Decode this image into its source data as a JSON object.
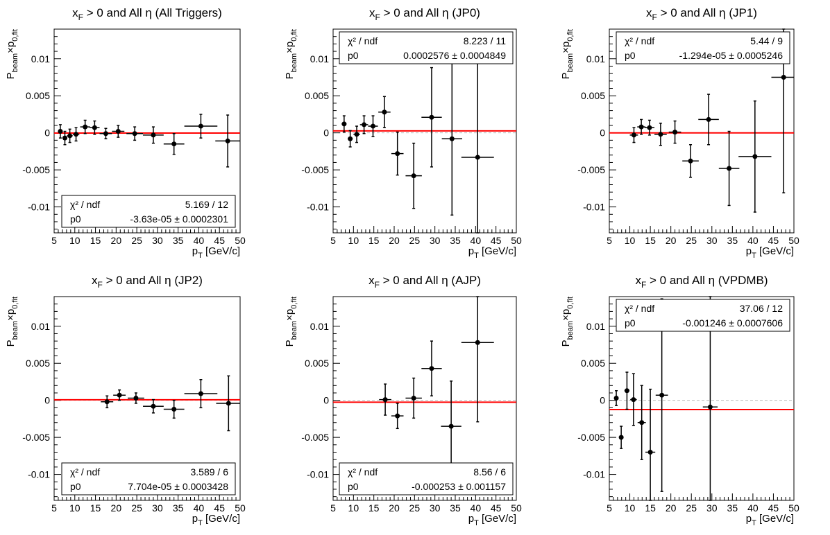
{
  "colors": {
    "fit_line": "#ff0000",
    "zero_line": "#bbbbbb",
    "points": "#000000"
  },
  "chart_data": [
    {
      "type": "scatter",
      "title": {
        "prefix": "x",
        "sub": "F",
        "rest": " > 0 and All η (All Triggers)"
      },
      "xlabel": "p_T [GeV/c]",
      "ylabel": "P_beam×p_0,fit",
      "xlim": [
        5,
        50
      ],
      "ylim": [
        -0.0135,
        0.014
      ],
      "xticks": [
        "5",
        "10",
        "15",
        "20",
        "25",
        "30",
        "35",
        "40",
        "45",
        "50"
      ],
      "yticks": [
        "0.01",
        "0.005",
        "0",
        "-0.005",
        "-0.01"
      ],
      "fit": {
        "p0": -3.63e-05,
        "chi2_ndf": "5.169 / 12",
        "p0_text": "-3.63e-05 ± 0.0002301"
      },
      "stats_box": {
        "label_chi": "χ² / ndf",
        "label_p0": "p0",
        "position": "bottom-center"
      },
      "points": [
        {
          "x": 6.5,
          "y": 0.0002,
          "xerr": 0.6,
          "yerr": 0.0009
        },
        {
          "x": 7.6,
          "y": -0.0007,
          "xerr": 0.6,
          "yerr": 0.0009
        },
        {
          "x": 8.8,
          "y": -0.0004,
          "xerr": 0.7,
          "yerr": 0.0009
        },
        {
          "x": 10.3,
          "y": -0.0002,
          "xerr": 0.8,
          "yerr": 0.0009
        },
        {
          "x": 12.5,
          "y": 0.0008,
          "xerr": 1.2,
          "yerr": 0.0009
        },
        {
          "x": 14.8,
          "y": 0.0007,
          "xerr": 1.2,
          "yerr": 0.0009
        },
        {
          "x": 17.5,
          "y": -0.0001,
          "xerr": 1.5,
          "yerr": 0.0007
        },
        {
          "x": 20.5,
          "y": 0.0002,
          "xerr": 1.5,
          "yerr": 0.0008
        },
        {
          "x": 24.5,
          "y": -0.0001,
          "xerr": 2.0,
          "yerr": 0.0009
        },
        {
          "x": 29.0,
          "y": -0.0003,
          "xerr": 2.5,
          "yerr": 0.0011
        },
        {
          "x": 34.0,
          "y": -0.0015,
          "xerr": 2.5,
          "yerr": 0.0014
        },
        {
          "x": 40.5,
          "y": 0.0009,
          "xerr": 4.0,
          "yerr": 0.0016
        },
        {
          "x": 47.0,
          "y": -0.0011,
          "xerr": 3.0,
          "yerr": 0.0035
        }
      ]
    },
    {
      "type": "scatter",
      "title": {
        "prefix": "x",
        "sub": "F",
        "rest": " > 0 and All η (JP0)"
      },
      "xlabel": "p_T [GeV/c]",
      "ylabel": "P_beam×p_0,fit",
      "xlim": [
        5,
        50
      ],
      "ylim": [
        -0.0135,
        0.014
      ],
      "xticks": [
        "5",
        "10",
        "15",
        "20",
        "25",
        "30",
        "35",
        "40",
        "45",
        "50"
      ],
      "yticks": [
        "0.01",
        "0.005",
        "0",
        "-0.005",
        "-0.01"
      ],
      "fit": {
        "p0": 0.0002576,
        "chi2_ndf": "8.223 / 11",
        "p0_text": "0.0002576 ± 0.0004849"
      },
      "stats_box": {
        "label_chi": "χ² / ndf",
        "label_p0": "p0",
        "position": "top-center"
      },
      "points": [
        {
          "x": 7.7,
          "y": 0.0012,
          "xerr": 0.6,
          "yerr": 0.0011
        },
        {
          "x": 9.2,
          "y": -0.0008,
          "xerr": 0.6,
          "yerr": 0.0011
        },
        {
          "x": 10.8,
          "y": -0.0002,
          "xerr": 0.8,
          "yerr": 0.0011
        },
        {
          "x": 12.6,
          "y": 0.0011,
          "xerr": 1.0,
          "yerr": 0.0012
        },
        {
          "x": 14.8,
          "y": 0.0009,
          "xerr": 1.2,
          "yerr": 0.0014
        },
        {
          "x": 17.6,
          "y": 0.0028,
          "xerr": 1.5,
          "yerr": 0.0021
        },
        {
          "x": 20.8,
          "y": -0.0028,
          "xerr": 1.5,
          "yerr": 0.0029
        },
        {
          "x": 24.8,
          "y": -0.0058,
          "xerr": 2.0,
          "yerr": 0.0044
        },
        {
          "x": 29.2,
          "y": 0.0021,
          "xerr": 2.5,
          "yerr": 0.0067
        },
        {
          "x": 34.2,
          "y": -0.0008,
          "xerr": 2.5,
          "yerr": 0.0103
        },
        {
          "x": 40.5,
          "y": -0.0033,
          "xerr": 4.0,
          "yerr": 0.0135
        }
      ]
    },
    {
      "type": "scatter",
      "title": {
        "prefix": "x",
        "sub": "F",
        "rest": " > 0 and All η (JP1)"
      },
      "xlabel": "p_T [GeV/c]",
      "ylabel": "P_beam×p_0,fit",
      "xlim": [
        5,
        50
      ],
      "ylim": [
        -0.0135,
        0.014
      ],
      "xticks": [
        "5",
        "10",
        "15",
        "20",
        "25",
        "30",
        "35",
        "40",
        "45",
        "50"
      ],
      "yticks": [
        "0.01",
        "0.005",
        "0",
        "-0.005",
        "-0.01"
      ],
      "fit": {
        "p0": -1.294e-05,
        "chi2_ndf": "5.44 / 9",
        "p0_text": "-1.294e-05 ± 0.0005246"
      },
      "stats_box": {
        "label_chi": "χ² / ndf",
        "label_p0": "p0",
        "position": "top-center"
      },
      "points": [
        {
          "x": 11.0,
          "y": -0.0003,
          "xerr": 1.0,
          "yerr": 0.001
        },
        {
          "x": 12.8,
          "y": 0.0008,
          "xerr": 1.0,
          "yerr": 0.001
        },
        {
          "x": 14.8,
          "y": 0.0007,
          "xerr": 1.2,
          "yerr": 0.001
        },
        {
          "x": 17.5,
          "y": -0.0002,
          "xerr": 1.5,
          "yerr": 0.0015
        },
        {
          "x": 21.0,
          "y": 0.0001,
          "xerr": 1.5,
          "yerr": 0.0015
        },
        {
          "x": 24.8,
          "y": -0.0038,
          "xerr": 2.0,
          "yerr": 0.0022
        },
        {
          "x": 29.2,
          "y": 0.0018,
          "xerr": 2.5,
          "yerr": 0.0034
        },
        {
          "x": 34.2,
          "y": -0.0048,
          "xerr": 2.5,
          "yerr": 0.005
        },
        {
          "x": 40.5,
          "y": -0.0032,
          "xerr": 4.0,
          "yerr": 0.0075
        },
        {
          "x": 47.5,
          "y": 0.0075,
          "xerr": 3.0,
          "yerr": 0.0156
        }
      ]
    },
    {
      "type": "scatter",
      "title": {
        "prefix": "x",
        "sub": "F",
        "rest": " > 0 and All η (JP2)"
      },
      "xlabel": "p_T [GeV/c]",
      "ylabel": "P_beam×p_0,fit",
      "xlim": [
        5,
        50
      ],
      "ylim": [
        -0.0135,
        0.014
      ],
      "xticks": [
        "5",
        "10",
        "15",
        "20",
        "25",
        "30",
        "35",
        "40",
        "45",
        "50"
      ],
      "yticks": [
        "0.01",
        "0.005",
        "0",
        "-0.005",
        "-0.01"
      ],
      "fit": {
        "p0": 7.704e-05,
        "chi2_ndf": "3.589 / 6",
        "p0_text": "7.704e-05 ± 0.0003428"
      },
      "stats_box": {
        "label_chi": "χ² / ndf",
        "label_p0": "p0",
        "position": "bottom-center"
      },
      "points": [
        {
          "x": 17.8,
          "y": -0.0002,
          "xerr": 1.5,
          "yerr": 0.0008
        },
        {
          "x": 20.8,
          "y": 0.0007,
          "xerr": 1.5,
          "yerr": 0.0007
        },
        {
          "x": 24.8,
          "y": 0.0003,
          "xerr": 2.0,
          "yerr": 0.0007
        },
        {
          "x": 29.0,
          "y": -0.0008,
          "xerr": 2.5,
          "yerr": 0.0009
        },
        {
          "x": 34.0,
          "y": -0.0012,
          "xerr": 2.5,
          "yerr": 0.0012
        },
        {
          "x": 40.5,
          "y": 0.0009,
          "xerr": 4.0,
          "yerr": 0.0019
        },
        {
          "x": 47.2,
          "y": -0.0004,
          "xerr": 3.0,
          "yerr": 0.0037
        }
      ]
    },
    {
      "type": "scatter",
      "title": {
        "prefix": "x",
        "sub": "F",
        "rest": " > 0 and All η (AJP)"
      },
      "xlabel": "p_T [GeV/c]",
      "ylabel": "P_beam×p_0,fit",
      "xlim": [
        5,
        50
      ],
      "ylim": [
        -0.0135,
        0.014
      ],
      "xticks": [
        "5",
        "10",
        "15",
        "20",
        "25",
        "30",
        "35",
        "40",
        "45",
        "50"
      ],
      "yticks": [
        "0.01",
        "0.005",
        "0",
        "-0.005",
        "-0.01"
      ],
      "fit": {
        "p0": -0.000253,
        "chi2_ndf": "8.56 / 6",
        "p0_text": "-0.000253 ± 0.001157"
      },
      "stats_box": {
        "label_chi": "χ² / ndf",
        "label_p0": "p0",
        "position": "bottom-center"
      },
      "points": [
        {
          "x": 17.8,
          "y": 0.0001,
          "xerr": 1.5,
          "yerr": 0.0021
        },
        {
          "x": 20.8,
          "y": -0.0021,
          "xerr": 1.5,
          "yerr": 0.0017
        },
        {
          "x": 24.8,
          "y": 0.0003,
          "xerr": 2.0,
          "yerr": 0.0027
        },
        {
          "x": 29.2,
          "y": 0.0043,
          "xerr": 2.5,
          "yerr": 0.0037
        },
        {
          "x": 34.0,
          "y": -0.0035,
          "xerr": 2.5,
          "yerr": 0.0061
        },
        {
          "x": 40.5,
          "y": 0.0078,
          "xerr": 4.0,
          "yerr": 0.0107
        }
      ]
    },
    {
      "type": "scatter",
      "title": {
        "prefix": "x",
        "sub": "F",
        "rest": " > 0 and All η (VPDMB)"
      },
      "xlabel": "p_T [GeV/c]",
      "ylabel": "P_beam×p_0,fit",
      "xlim": [
        5,
        50
      ],
      "ylim": [
        -0.0135,
        0.014
      ],
      "xticks": [
        "5",
        "10",
        "15",
        "20",
        "25",
        "30",
        "35",
        "40",
        "45",
        "50"
      ],
      "yticks": [
        "0.01",
        "0.005",
        "0",
        "-0.005",
        "-0.01"
      ],
      "fit": {
        "p0": -0.001246,
        "chi2_ndf": "37.06 / 12",
        "p0_text": "-0.001246 ± 0.0007606"
      },
      "stats_box": {
        "label_chi": "χ² / ndf",
        "label_p0": "p0",
        "position": "top-center"
      },
      "points": [
        {
          "x": 6.7,
          "y": 0.0003,
          "xerr": 0.5,
          "yerr": 0.001
        },
        {
          "x": 7.9,
          "y": -0.005,
          "xerr": 0.5,
          "yerr": 0.0015
        },
        {
          "x": 9.3,
          "y": 0.0013,
          "xerr": 0.6,
          "yerr": 0.0025
        },
        {
          "x": 10.9,
          "y": 0.0001,
          "xerr": 0.8,
          "yerr": 0.0035
        },
        {
          "x": 12.9,
          "y": -0.003,
          "xerr": 1.0,
          "yerr": 0.005
        },
        {
          "x": 15.0,
          "y": -0.007,
          "xerr": 1.2,
          "yerr": 0.0085
        },
        {
          "x": 17.8,
          "y": 0.0007,
          "xerr": 1.5,
          "yerr": 0.013
        },
        {
          "x": 29.6,
          "y": -0.0009,
          "xerr": 1.8,
          "yerr": 0.016
        }
      ]
    }
  ]
}
